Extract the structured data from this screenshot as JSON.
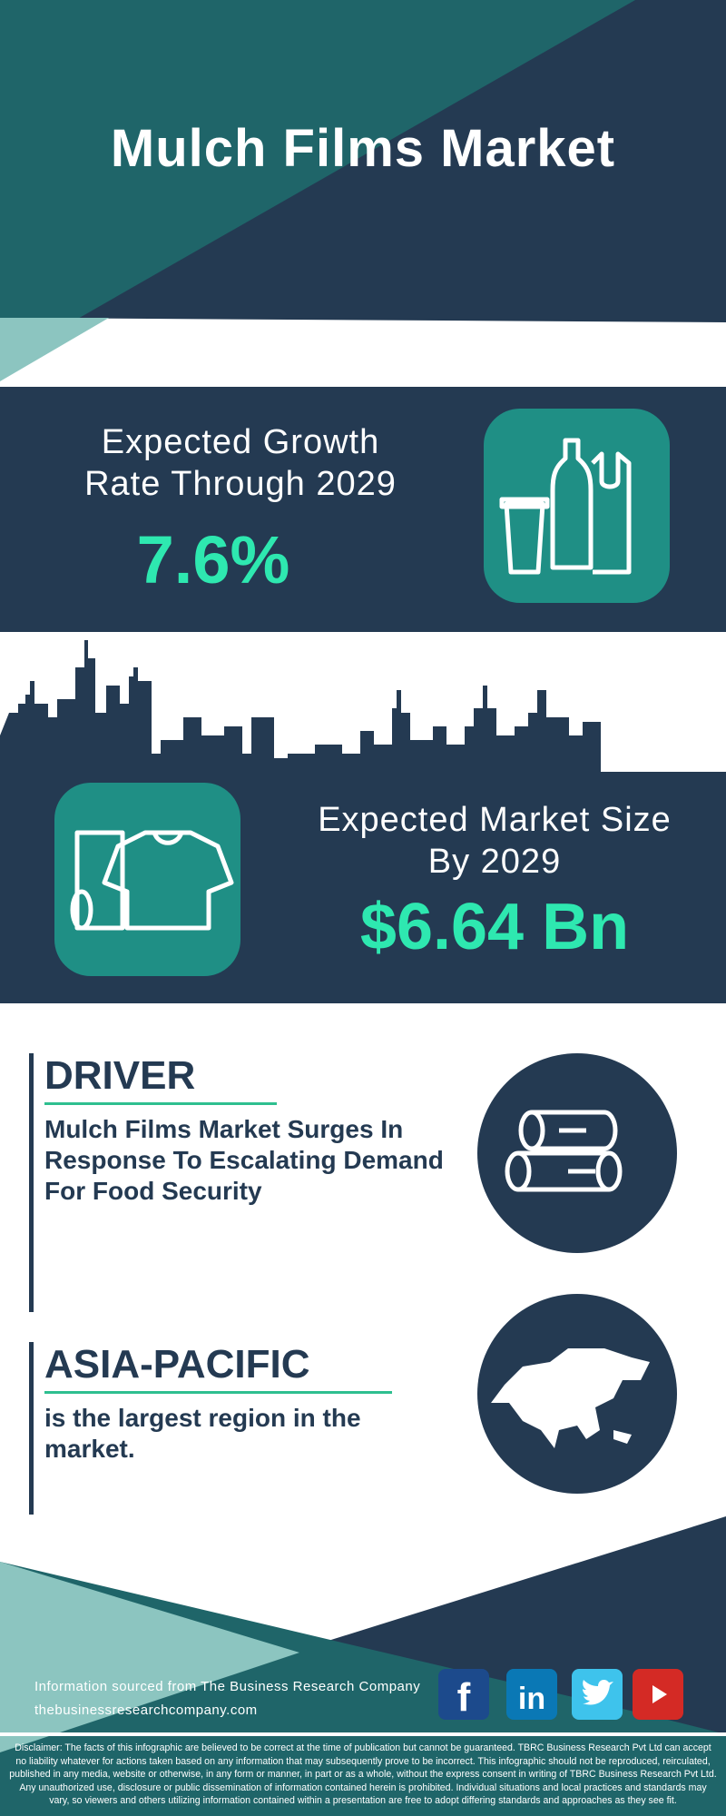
{
  "header": {
    "title": "Mulch Films Market"
  },
  "growth": {
    "label_line1": "Expected Growth",
    "label_line2": "Rate Through 2029",
    "value": "7.6%",
    "icon": "bottle-cup-bag-icon"
  },
  "market_size": {
    "label_line1": "Expected Market Size",
    "label_line2": "By 2029",
    "value": "$6.64 Bn",
    "icon": "film-roll-shirt-icon"
  },
  "driver": {
    "heading": "DRIVER",
    "text": "Mulch Films Market Surges In Response To Escalating Demand For Food Security",
    "icon": "logs-icon"
  },
  "region": {
    "heading": "ASIA-PACIFIC",
    "text": "is the largest region in the market.",
    "icon": "asia-map-icon"
  },
  "footer": {
    "source": "Information sourced from The Business Research Company",
    "website": "thebusinessresearchcompany.com",
    "social": [
      "facebook",
      "linkedin",
      "twitter",
      "youtube"
    ],
    "disclaimer": "Disclaimer: The facts of this infographic are believed to be correct at the time of publication but cannot be guaranteed. TBRC Business Research Pvt Ltd can accept no liability whatever for actions taken based on any information that may subsequently prove to be incorrect. This infographic should not be reproduced, reirculated, published in any media, website or otherwise, in any form or manner, in part or as a whole, without the express consent in writing of TBRC Business Research Pvt Ltd. Any unauthorized use, disclosure or public dissemination of information contained herein is prohibited. Individual situations and local practices and standards may vary, so viewers and others utilizing information contained within a presentation are free to adopt differing standards and approaches as they see fit."
  },
  "colors": {
    "dark": "#243a52",
    "teal": "#1f6569",
    "light_teal": "#8cc5c0",
    "accent": "#2ee8b0",
    "icon_bg": "#1f8f85"
  }
}
